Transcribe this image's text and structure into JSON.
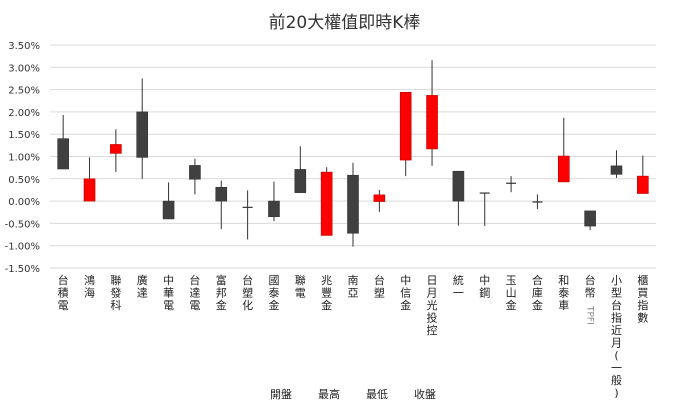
{
  "title": "前20大權值即時K棒",
  "colors": {
    "up": "#ff0000",
    "down": "#404040",
    "wick": "#333333",
    "grid": "#d9d9d9",
    "axis_text": "#333333"
  },
  "legend": [
    "開盤",
    "最高",
    "最低",
    "收盤"
  ],
  "chart_data": {
    "type": "candlestick",
    "title": "前20大權值即時K棒",
    "xlabel": "",
    "ylabel": "",
    "ylim": [
      -1.5,
      3.5
    ],
    "yticks": [
      "3.50%",
      "3.00%",
      "2.50%",
      "2.00%",
      "1.50%",
      "1.00%",
      "0.50%",
      "0.00%",
      "-0.50%",
      "-1.00%",
      "-1.50%"
    ],
    "grid": true,
    "legend_position": "bottom",
    "legend": [
      "開盤",
      "最高",
      "最低",
      "收盤"
    ],
    "categories": [
      "台積電",
      "鴻海",
      "聯發科",
      "廣達",
      "中華電",
      "台達電",
      "富邦金",
      "台塑化",
      "國泰金",
      "聯電",
      "兆豐金",
      "南亞",
      "台塑",
      "中信金",
      "日月光投控",
      "統一",
      "中鋼",
      "玉山金",
      "合庫金",
      "和泰車",
      "台幣TPFI",
      "小型台指近月(一般)",
      "櫃買指數"
    ],
    "series": [
      {
        "name": "開盤",
        "values": [
          1.4,
          0.0,
          1.07,
          2.0,
          0.0,
          0.8,
          0.31,
          -0.14,
          0.0,
          0.71,
          -0.77,
          0.58,
          -0.01,
          0.92,
          1.17,
          0.67,
          0.18,
          0.4,
          -0.02,
          0.43,
          -0.22,
          0.79,
          0.17
        ]
      },
      {
        "name": "最高",
        "values": [
          1.93,
          0.98,
          1.61,
          2.75,
          0.42,
          0.95,
          0.46,
          0.24,
          0.44,
          1.23,
          0.76,
          0.86,
          0.25,
          2.44,
          3.16,
          0.67,
          0.18,
          0.56,
          0.15,
          1.87,
          -0.22,
          1.14,
          1.02
        ]
      },
      {
        "name": "最低",
        "values": [
          0.72,
          0.0,
          0.65,
          0.5,
          -0.4,
          0.15,
          -0.63,
          -0.86,
          -0.45,
          0.19,
          -0.77,
          -1.02,
          -0.24,
          0.56,
          0.79,
          -0.55,
          -0.56,
          0.2,
          -0.18,
          0.43,
          -0.65,
          0.52,
          0.17
        ]
      },
      {
        "name": "收盤",
        "values": [
          0.72,
          0.5,
          1.27,
          0.98,
          -0.4,
          0.49,
          0.0,
          -0.14,
          -0.35,
          0.19,
          0.65,
          -0.72,
          0.14,
          2.44,
          2.37,
          0.0,
          0.18,
          0.4,
          -0.02,
          1.01,
          -0.56,
          0.6,
          0.56
        ]
      }
    ]
  }
}
